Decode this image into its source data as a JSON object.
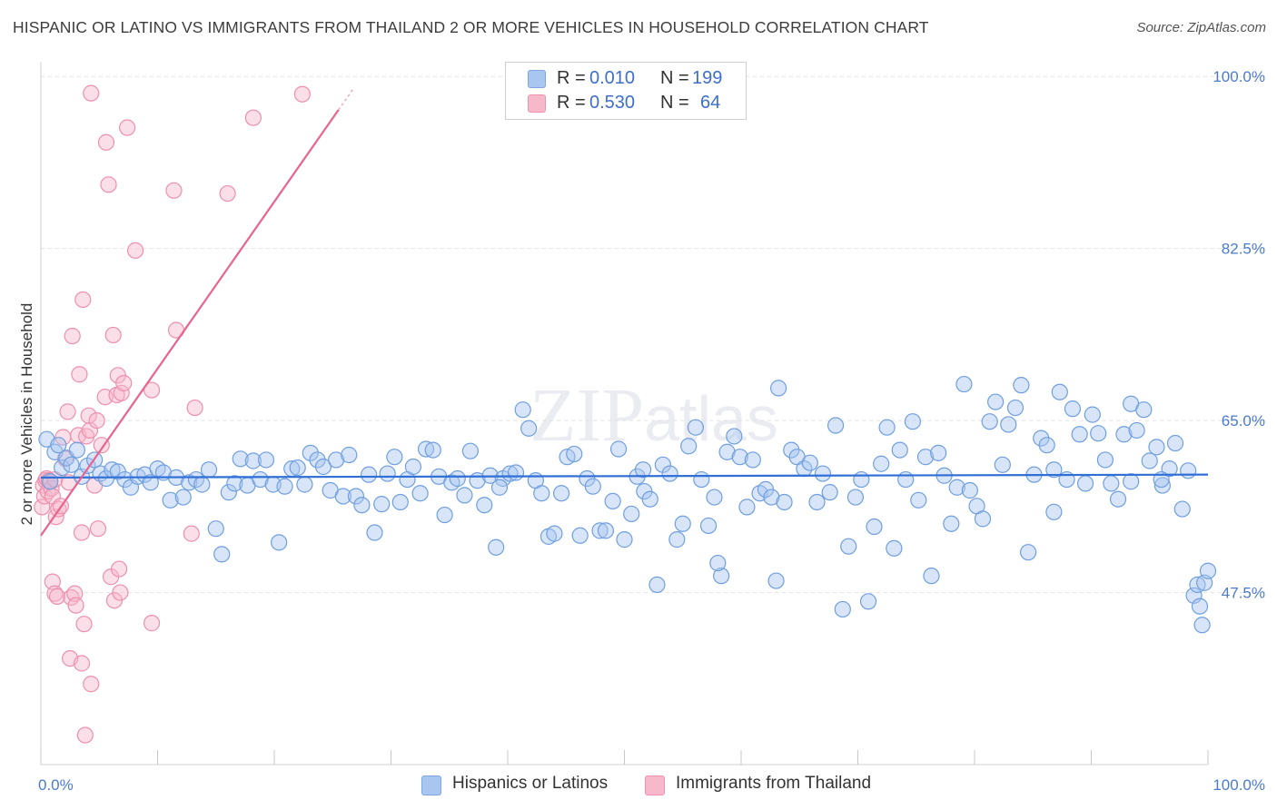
{
  "title": "HISPANIC OR LATINO VS IMMIGRANTS FROM THAILAND 2 OR MORE VEHICLES IN HOUSEHOLD CORRELATION CHART",
  "source": "Source: ZipAtlas.com",
  "watermark": "ZIPatlas",
  "legend": {
    "rows": [
      {
        "r_label": "R =",
        "r_value": "0.010",
        "n_label": "N =",
        "n_value": "199",
        "color": "#a9c6f0",
        "border": "#7ea6e0"
      },
      {
        "r_label": "R =",
        "r_value": "0.530",
        "n_label": "N =",
        "n_value": "64",
        "color": "#f7b8cb",
        "border": "#ee93ae"
      }
    ]
  },
  "bottom_legend": [
    {
      "label": "Hispanics or Latinos",
      "color": "#a9c6f0",
      "border": "#7ea6e0"
    },
    {
      "label": "Immigrants from Thailand",
      "color": "#f7b8cb",
      "border": "#ee93ae"
    }
  ],
  "colors": {
    "blue_fill": "#a9c6f0",
    "blue_stroke": "#6f9fdf",
    "blue_line": "#2f6fd6",
    "pink_fill": "#f7b8cb",
    "pink_stroke": "#ee8fac",
    "pink_line": "#e8648f",
    "grid": "#e3e3e3",
    "tick_label": "#4a7bd0"
  },
  "chart_data": {
    "type": "scatter",
    "title": "HISPANIC OR LATINO VS IMMIGRANTS FROM THAILAND 2 OR MORE VEHICLES IN HOUSEHOLD CORRELATION CHART",
    "xlabel": "",
    "ylabel": "2 or more Vehicles in Household",
    "xlim": [
      0,
      100
    ],
    "ylim": [
      30,
      101.5
    ],
    "x_tick_labels": [
      "0.0%",
      "100.0%"
    ],
    "y_ticks": [
      47.5,
      65.0,
      82.5,
      100.0
    ],
    "y_tick_labels": [
      "47.5%",
      "65.0%",
      "82.5%",
      "100.0%"
    ],
    "grid": true,
    "legend_position": "top-center",
    "series": [
      {
        "name": "Hispanics or Latinos",
        "r": 0.01,
        "n": 199,
        "trend": {
          "x": [
            0,
            100
          ],
          "y": [
            59.2,
            59.5
          ]
        },
        "points": [
          [
            0.5,
            63.1
          ],
          [
            0.8,
            58.8
          ],
          [
            1.2,
            61.8
          ],
          [
            1.5,
            62.5
          ],
          [
            1.8,
            60.2
          ],
          [
            2.2,
            61.2
          ],
          [
            2.6,
            60.5
          ],
          [
            3.1,
            62.0
          ],
          [
            3.5,
            59.3
          ],
          [
            4.0,
            60.4
          ],
          [
            4.6,
            61.0
          ],
          [
            5.1,
            59.6
          ],
          [
            5.6,
            59.1
          ],
          [
            6.1,
            60.0
          ],
          [
            6.6,
            59.8
          ],
          [
            7.2,
            59.0
          ],
          [
            7.7,
            58.2
          ],
          [
            8.3,
            59.3
          ],
          [
            8.9,
            59.5
          ],
          [
            9.4,
            58.7
          ],
          [
            10.0,
            60.1
          ],
          [
            10.5,
            59.7
          ],
          [
            11.1,
            56.9
          ],
          [
            11.6,
            59.2
          ],
          [
            12.2,
            57.2
          ],
          [
            12.7,
            58.7
          ],
          [
            13.3,
            59.0
          ],
          [
            13.8,
            58.5
          ],
          [
            14.4,
            60.0
          ],
          [
            15.0,
            54.0
          ],
          [
            15.5,
            51.4
          ],
          [
            16.1,
            57.7
          ],
          [
            16.6,
            58.6
          ],
          [
            17.1,
            61.1
          ],
          [
            17.7,
            58.4
          ],
          [
            18.2,
            60.9
          ],
          [
            18.8,
            59.0
          ],
          [
            19.3,
            61.0
          ],
          [
            19.9,
            58.5
          ],
          [
            20.4,
            52.6
          ],
          [
            20.9,
            58.3
          ],
          [
            21.5,
            60.1
          ],
          [
            22.0,
            60.2
          ],
          [
            22.6,
            58.5
          ],
          [
            23.1,
            61.7
          ],
          [
            23.7,
            61.0
          ],
          [
            24.2,
            60.3
          ],
          [
            24.8,
            57.9
          ],
          [
            25.3,
            61.0
          ],
          [
            25.9,
            57.3
          ],
          [
            26.4,
            61.5
          ],
          [
            27.0,
            57.3
          ],
          [
            27.5,
            56.4
          ],
          [
            28.1,
            59.5
          ],
          [
            28.6,
            53.6
          ],
          [
            29.2,
            56.5
          ],
          [
            29.7,
            59.6
          ],
          [
            30.3,
            61.3
          ],
          [
            30.8,
            56.7
          ],
          [
            31.4,
            59.0
          ],
          [
            31.9,
            60.3
          ],
          [
            32.5,
            57.6
          ],
          [
            33.0,
            62.1
          ],
          [
            33.6,
            62.0
          ],
          [
            34.1,
            59.3
          ],
          [
            34.6,
            55.4
          ],
          [
            35.2,
            58.7
          ],
          [
            35.7,
            59.1
          ],
          [
            36.3,
            57.4
          ],
          [
            36.8,
            61.9
          ],
          [
            37.4,
            58.9
          ],
          [
            38.0,
            56.4
          ],
          [
            38.5,
            59.4
          ],
          [
            39.0,
            52.1
          ],
          [
            39.6,
            59.1
          ],
          [
            40.2,
            59.6
          ],
          [
            40.7,
            59.7
          ],
          [
            41.3,
            66.1
          ],
          [
            41.8,
            64.2
          ],
          [
            42.4,
            58.9
          ],
          [
            42.9,
            57.6
          ],
          [
            43.5,
            53.2
          ],
          [
            44.0,
            53.5
          ],
          [
            44.6,
            57.6
          ],
          [
            45.1,
            61.3
          ],
          [
            45.7,
            61.6
          ],
          [
            46.2,
            53.3
          ],
          [
            46.8,
            59.1
          ],
          [
            47.3,
            58.3
          ],
          [
            47.9,
            53.8
          ],
          [
            48.4,
            53.8
          ],
          [
            49.0,
            56.8
          ],
          [
            49.5,
            62.1
          ],
          [
            50.0,
            52.9
          ],
          [
            50.6,
            55.5
          ],
          [
            51.1,
            59.3
          ],
          [
            51.7,
            57.8
          ],
          [
            52.2,
            57.0
          ],
          [
            52.8,
            48.3
          ],
          [
            53.3,
            60.5
          ],
          [
            53.9,
            59.6
          ],
          [
            54.5,
            52.9
          ],
          [
            55.0,
            54.5
          ],
          [
            55.5,
            62.4
          ],
          [
            56.1,
            64.3
          ],
          [
            56.6,
            59.0
          ],
          [
            57.2,
            54.3
          ],
          [
            57.7,
            57.2
          ],
          [
            58.3,
            49.2
          ],
          [
            58.8,
            61.8
          ],
          [
            59.4,
            63.4
          ],
          [
            59.9,
            61.3
          ],
          [
            60.5,
            56.2
          ],
          [
            61.0,
            61.0
          ],
          [
            61.6,
            57.6
          ],
          [
            62.1,
            58.0
          ],
          [
            62.6,
            57.2
          ],
          [
            63.2,
            68.3
          ],
          [
            63.7,
            56.7
          ],
          [
            64.3,
            62.0
          ],
          [
            64.8,
            61.3
          ],
          [
            65.4,
            60.1
          ],
          [
            65.9,
            60.7
          ],
          [
            66.5,
            56.7
          ],
          [
            67.0,
            59.6
          ],
          [
            67.6,
            57.7
          ],
          [
            68.1,
            64.5
          ],
          [
            68.7,
            45.8
          ],
          [
            69.2,
            52.2
          ],
          [
            69.8,
            57.2
          ],
          [
            70.3,
            59.0
          ],
          [
            70.9,
            46.6
          ],
          [
            71.4,
            54.2
          ],
          [
            72.0,
            60.6
          ],
          [
            72.5,
            64.3
          ],
          [
            73.1,
            52.0
          ],
          [
            73.6,
            62.0
          ],
          [
            74.1,
            59.0
          ],
          [
            74.7,
            64.9
          ],
          [
            75.2,
            56.9
          ],
          [
            75.8,
            61.3
          ],
          [
            76.3,
            49.2
          ],
          [
            76.9,
            61.7
          ],
          [
            77.4,
            59.4
          ],
          [
            78.0,
            54.5
          ],
          [
            78.5,
            58.2
          ],
          [
            79.1,
            68.7
          ],
          [
            79.6,
            57.9
          ],
          [
            80.2,
            56.3
          ],
          [
            80.7,
            55.0
          ],
          [
            81.3,
            64.9
          ],
          [
            81.8,
            66.9
          ],
          [
            82.4,
            60.5
          ],
          [
            82.9,
            64.6
          ],
          [
            83.5,
            66.3
          ],
          [
            84.0,
            68.6
          ],
          [
            84.6,
            51.6
          ],
          [
            85.1,
            59.5
          ],
          [
            85.7,
            63.2
          ],
          [
            86.2,
            62.5
          ],
          [
            86.8,
            60.0
          ],
          [
            87.3,
            67.9
          ],
          [
            87.9,
            59.0
          ],
          [
            88.4,
            66.2
          ],
          [
            89.0,
            63.6
          ],
          [
            89.5,
            58.6
          ],
          [
            90.1,
            65.6
          ],
          [
            90.6,
            63.7
          ],
          [
            91.2,
            61.0
          ],
          [
            91.7,
            58.6
          ],
          [
            92.3,
            57.0
          ],
          [
            92.8,
            63.6
          ],
          [
            93.4,
            66.7
          ],
          [
            93.9,
            64.0
          ],
          [
            94.5,
            66.1
          ],
          [
            95.0,
            60.9
          ],
          [
            95.6,
            62.3
          ],
          [
            96.1,
            58.4
          ],
          [
            96.7,
            60.1
          ],
          [
            97.2,
            62.7
          ],
          [
            97.8,
            56.0
          ],
          [
            98.3,
            59.9
          ],
          [
            98.8,
            47.2
          ],
          [
            99.1,
            48.3
          ],
          [
            99.3,
            46.1
          ],
          [
            99.5,
            44.2
          ],
          [
            99.7,
            48.5
          ],
          [
            100.0,
            49.7
          ],
          [
            51.6,
            60.0
          ],
          [
            58.0,
            50.5
          ],
          [
            63.0,
            48.7
          ],
          [
            86.8,
            55.7
          ],
          [
            93.4,
            58.8
          ],
          [
            96.0,
            59.0
          ],
          [
            39.3,
            58.2
          ]
        ]
      },
      {
        "name": "Immigrants from Thailand",
        "r": 0.53,
        "n": 64,
        "trend": {
          "x": [
            0,
            25.5
          ],
          "y": [
            53.3,
            96.6
          ]
        },
        "trend_dashed": {
          "x": [
            25.5,
            26.8
          ],
          "y": [
            96.6,
            98.8
          ]
        },
        "points": [
          [
            0.1,
            56.2
          ],
          [
            0.2,
            58.4
          ],
          [
            0.3,
            57.3
          ],
          [
            0.4,
            58.9
          ],
          [
            0.5,
            59.1
          ],
          [
            0.6,
            57.8
          ],
          [
            0.7,
            58.9
          ],
          [
            0.9,
            58.1
          ],
          [
            1.0,
            57.3
          ],
          [
            1.2,
            59.0
          ],
          [
            1.3,
            55.2
          ],
          [
            1.5,
            56.0
          ],
          [
            1.0,
            48.6
          ],
          [
            1.2,
            47.4
          ],
          [
            1.4,
            47.1
          ],
          [
            1.7,
            56.3
          ],
          [
            1.9,
            63.3
          ],
          [
            2.1,
            61.1
          ],
          [
            2.3,
            65.9
          ],
          [
            2.4,
            58.7
          ],
          [
            2.5,
            40.8
          ],
          [
            2.6,
            47.0
          ],
          [
            2.7,
            73.6
          ],
          [
            2.9,
            47.4
          ],
          [
            3.0,
            46.2
          ],
          [
            3.2,
            63.5
          ],
          [
            3.3,
            69.7
          ],
          [
            3.5,
            53.6
          ],
          [
            3.5,
            40.3
          ],
          [
            3.6,
            77.3
          ],
          [
            3.7,
            44.3
          ],
          [
            3.8,
            33.0
          ],
          [
            3.9,
            63.4
          ],
          [
            4.1,
            65.5
          ],
          [
            4.2,
            64.0
          ],
          [
            4.3,
            38.2
          ],
          [
            4.6,
            58.4
          ],
          [
            4.8,
            65.0
          ],
          [
            4.9,
            54.0
          ],
          [
            5.2,
            62.5
          ],
          [
            5.5,
            67.4
          ],
          [
            5.6,
            93.3
          ],
          [
            5.8,
            89.0
          ],
          [
            6.0,
            49.1
          ],
          [
            6.2,
            73.7
          ],
          [
            6.3,
            46.7
          ],
          [
            6.5,
            67.6
          ],
          [
            6.6,
            69.6
          ],
          [
            6.7,
            49.9
          ],
          [
            6.8,
            47.5
          ],
          [
            6.9,
            67.8
          ],
          [
            7.1,
            68.8
          ],
          [
            7.4,
            94.8
          ],
          [
            8.1,
            82.3
          ],
          [
            9.5,
            44.4
          ],
          [
            9.5,
            68.1
          ],
          [
            11.4,
            88.4
          ],
          [
            11.6,
            74.2
          ],
          [
            12.9,
            53.5
          ],
          [
            13.2,
            66.3
          ],
          [
            16.0,
            88.1
          ],
          [
            18.2,
            95.8
          ],
          [
            22.4,
            98.2
          ],
          [
            4.3,
            98.3
          ]
        ]
      }
    ]
  }
}
